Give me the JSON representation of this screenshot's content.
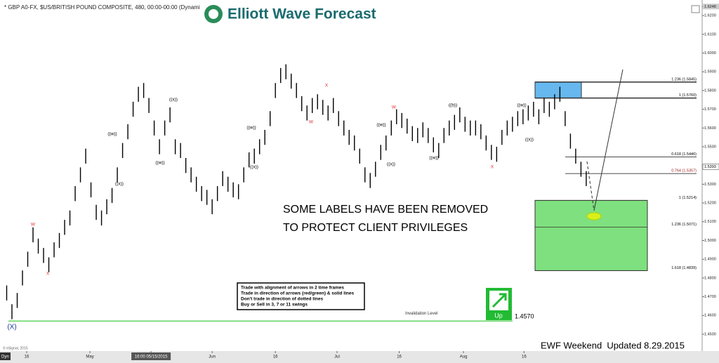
{
  "chart_data": {
    "type": "ohlc",
    "title": "* GBP A0-FX, $US/BRITISH POUND COMPOSITE, 480, 00:00-00:00 (Dynamic",
    "color": "#000000",
    "x": [
      1,
      2,
      3,
      4,
      5,
      6,
      7,
      8,
      9,
      10,
      11,
      12,
      13,
      14,
      15,
      16,
      17,
      18,
      19,
      20,
      21,
      22,
      23,
      24,
      25,
      26,
      27,
      28,
      29,
      30,
      31,
      32,
      33,
      34,
      35,
      36,
      37,
      38,
      39,
      40,
      41,
      42,
      43,
      44,
      45,
      46,
      47,
      48,
      49,
      50,
      51,
      52,
      53,
      54,
      55,
      56,
      57,
      58,
      59,
      60,
      61,
      62,
      63,
      64,
      65,
      66,
      67,
      68,
      69,
      70,
      71,
      72,
      73,
      74,
      75,
      76,
      77,
      78,
      79,
      80,
      81,
      82,
      83,
      84,
      85,
      86,
      87,
      88,
      89,
      90,
      91,
      92,
      93,
      94,
      95,
      96,
      97,
      98,
      99,
      100,
      101,
      102,
      103,
      104,
      105,
      106,
      107,
      108,
      109,
      110,
      111
    ],
    "high": [
      1.476,
      1.466,
      1.472,
      1.484,
      1.494,
      1.507,
      1.501,
      1.496,
      1.491,
      1.499,
      1.504,
      1.511,
      1.516,
      1.529,
      1.539,
      1.549,
      1.531,
      1.519,
      1.516,
      1.522,
      1.528,
      1.539,
      1.552,
      1.562,
      1.574,
      1.582,
      1.584,
      1.576,
      1.564,
      1.554,
      1.564,
      1.571,
      1.554,
      1.552,
      1.544,
      1.539,
      1.534,
      1.529,
      1.527,
      1.522,
      1.529,
      1.537,
      1.534,
      1.531,
      1.53,
      1.539,
      1.547,
      1.549,
      1.554,
      1.559,
      1.569,
      1.584,
      1.592,
      1.594,
      1.589,
      1.584,
      1.577,
      1.572,
      1.576,
      1.578,
      1.575,
      1.572,
      1.576,
      1.569,
      1.564,
      1.559,
      1.556,
      1.549,
      1.539,
      1.536,
      1.542,
      1.551,
      1.556,
      1.564,
      1.57,
      1.568,
      1.565,
      1.561,
      1.56,
      1.563,
      1.56,
      1.555,
      1.552,
      1.56,
      1.564,
      1.567,
      1.571,
      1.566,
      1.564,
      1.564,
      1.562,
      1.556,
      1.551,
      1.55,
      1.559,
      1.564,
      1.566,
      1.569,
      1.57,
      1.572,
      1.574,
      1.57,
      1.576,
      1.574,
      1.578,
      1.582,
      1.569,
      1.557,
      1.549,
      1.542,
      1.537
    ],
    "low": [
      1.468,
      1.458,
      1.464,
      1.476,
      1.486,
      1.499,
      1.493,
      1.488,
      1.483,
      1.491,
      1.496,
      1.503,
      1.508,
      1.521,
      1.531,
      1.541,
      1.523,
      1.511,
      1.508,
      1.514,
      1.52,
      1.531,
      1.544,
      1.554,
      1.566,
      1.574,
      1.576,
      1.568,
      1.556,
      1.546,
      1.556,
      1.563,
      1.546,
      1.544,
      1.536,
      1.531,
      1.526,
      1.521,
      1.519,
      1.514,
      1.521,
      1.529,
      1.526,
      1.523,
      1.522,
      1.531,
      1.539,
      1.541,
      1.546,
      1.551,
      1.561,
      1.576,
      1.584,
      1.586,
      1.581,
      1.576,
      1.569,
      1.564,
      1.568,
      1.57,
      1.567,
      1.564,
      1.568,
      1.561,
      1.556,
      1.551,
      1.548,
      1.541,
      1.531,
      1.528,
      1.534,
      1.543,
      1.548,
      1.556,
      1.562,
      1.56,
      1.557,
      1.553,
      1.552,
      1.555,
      1.552,
      1.547,
      1.544,
      1.552,
      1.556,
      1.559,
      1.563,
      1.558,
      1.556,
      1.556,
      1.554,
      1.548,
      1.543,
      1.542,
      1.551,
      1.556,
      1.558,
      1.561,
      1.562,
      1.564,
      1.566,
      1.562,
      1.568,
      1.566,
      1.57,
      1.574,
      1.561,
      1.549,
      1.541,
      1.534,
      1.529
    ],
    "xlim": [
      0,
      133
    ],
    "xticks": [
      {
        "value": 4.8,
        "label": "16"
      },
      {
        "value": 16.8,
        "label": "May"
      },
      {
        "value": 28.4,
        "label": "16:00 05/15/2015"
      },
      {
        "value": 40,
        "label": "Jun"
      },
      {
        "value": 52,
        "label": "16"
      },
      {
        "value": 63.7,
        "label": "Jul"
      },
      {
        "value": 75.5,
        "label": "16"
      },
      {
        "value": 87.7,
        "label": "Aug"
      },
      {
        "value": 99.2,
        "label": "16"
      }
    ],
    "ylim": [
      1.441,
      1.6248
    ],
    "yticks": [
      {
        "value": 1.6248,
        "label": "1.6248"
      },
      {
        "value": 1.62,
        "label": "1.6200"
      },
      {
        "value": 1.61,
        "label": "1.6100"
      },
      {
        "value": 1.6,
        "label": "1.6000"
      },
      {
        "value": 1.59,
        "label": "1.5900"
      },
      {
        "value": 1.58,
        "label": "1.5800"
      },
      {
        "value": 1.57,
        "label": "1.5700"
      },
      {
        "value": 1.56,
        "label": "1.5600"
      },
      {
        "value": 1.55,
        "label": "1.5500"
      },
      {
        "value": 1.54,
        "label": "1.5400"
      },
      {
        "value": 1.53,
        "label": "1.5300"
      },
      {
        "value": 1.52,
        "label": "1.5200"
      },
      {
        "value": 1.51,
        "label": "1.5100"
      },
      {
        "value": 1.5,
        "label": "1.5000"
      },
      {
        "value": 1.49,
        "label": "1.4900"
      },
      {
        "value": 1.48,
        "label": "1.4800"
      },
      {
        "value": 1.47,
        "label": "1.4700"
      },
      {
        "value": 1.46,
        "label": "1.4600"
      },
      {
        "value": 1.45,
        "label": "1.4500"
      }
    ],
    "last_price": {
      "value": 1.5393,
      "label": "1.5393"
    },
    "levels": [
      {
        "value": 1.5845,
        "label": "1.236 (1.5845)"
      },
      {
        "value": 1.576,
        "label": "1 (1.5760)"
      },
      {
        "value": 1.5446,
        "label": "0.618 (1.5446)"
      },
      {
        "value": 1.5357,
        "label": "0.764 (1.5357)"
      },
      {
        "value": 1.5214,
        "label": "1 (1.5214)"
      },
      {
        "value": 1.5071,
        "label": "1.236 (1.5071)"
      },
      {
        "value": 1.4839,
        "label": "1.618 (1.4839)"
      }
    ],
    "invalidation": {
      "value": 1.457,
      "label": "1.4570",
      "text": "Invalidation Level"
    },
    "wave_labels": [
      {
        "text": "W",
        "color": "#e03030"
      },
      {
        "text": "X",
        "color": "#e03030"
      },
      {
        "text": "((w))",
        "color": "#000000"
      },
      {
        "text": "((x))",
        "color": "#000000"
      },
      {
        "text": "((x))",
        "color": "#000000"
      },
      {
        "text": "((w))",
        "color": "#000000"
      },
      {
        "text": "X",
        "color": "#e03030"
      },
      {
        "text": "W",
        "color": "#e03030"
      },
      {
        "text": "((w))",
        "color": "#000000"
      },
      {
        "text": "((x))",
        "color": "#000000"
      },
      {
        "text": "W",
        "color": "#e03030"
      },
      {
        "text": "((w))",
        "color": "#000000"
      },
      {
        "text": "((x))",
        "color": "#000000"
      },
      {
        "text": "((b))",
        "color": "#000000"
      },
      {
        "text": "((w))",
        "color": "#000000"
      },
      {
        "text": "X",
        "color": "#e03030"
      },
      {
        "text": "((w))",
        "color": "#000000"
      },
      {
        "text": "((x))",
        "color": "#000000"
      },
      {
        "text": "(X)",
        "color": "#1f3fa0"
      }
    ]
  },
  "logo": "Elliott Wave Forecast",
  "notice": [
    "SOME LABELS HAVE BEEN REMOVED",
    "TO PROTECT CLIENT PRIVILEGES"
  ],
  "rules": [
    "Trade with alignment of arrows in 2 time frames",
    "Trade in direction of arrows (red/green) & solid lines",
    "Don't trade in direction of dotted lines",
    "Buy or Sell in 3, 7 or 11 swings"
  ],
  "signal": "Up",
  "footer": "EWF Weekend  Updated 8.29.2015",
  "copyright": "© eSignal, 2015",
  "interval": "Dyn"
}
